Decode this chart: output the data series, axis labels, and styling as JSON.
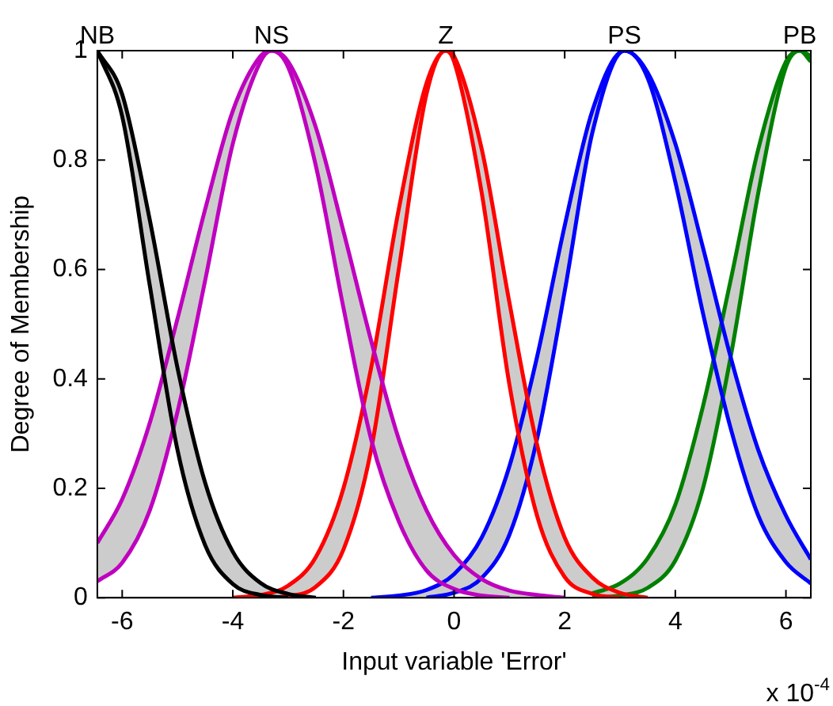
{
  "chart_data": {
    "type": "line",
    "xlabel": "Input variable 'Error'",
    "ylabel": "Degree of Membership",
    "annotations": [
      "x 10$^{-4}$"
    ],
    "xlim": [
      -6.45,
      6.45
    ],
    "xticks": [
      -6,
      -4,
      -2,
      0,
      2,
      4,
      6
    ],
    "ylim": [
      0,
      1
    ],
    "yticks": [
      0,
      0.2,
      0.4,
      0.6,
      0.8,
      1
    ],
    "grid": false,
    "legend": false,
    "marker": "none",
    "line_style": "solid",
    "series": [
      {
        "name": "NB",
        "color": "#000000",
        "x": [
          -6.45,
          -6.0,
          -5.5,
          -5.0,
          -4.5,
          -4.0,
          -3.5,
          -3.0,
          -2.5
        ],
        "values": [
          1,
          0.92,
          0.69,
          0.42,
          0.21,
          0.084,
          0.027,
          0.007,
          0
        ],
        "upper": [
          1,
          0.92,
          0.69,
          0.42,
          0.21,
          0.084,
          0.027,
          0.007,
          0
        ],
        "lower": [
          1,
          0.88,
          0.57,
          0.27,
          0.096,
          0.025,
          0.005,
          0,
          0
        ]
      },
      {
        "color": "#000000",
        "x": [
          -6.45,
          -6.0,
          -5.5,
          -5.0,
          -4.5,
          -4.0,
          -3.5,
          -3.0
        ],
        "values": [
          1,
          0.88,
          0.57,
          0.27,
          0.096,
          0.025,
          0.005,
          0
        ]
      },
      {
        "name": "NS",
        "color": "#bf00bf",
        "x": [
          -6.45,
          -6.0,
          -5.5,
          -5.0,
          -4.5,
          -4.0,
          -3.5,
          -3.3,
          -3.0,
          -2.5,
          -2.0,
          -1.5,
          -1.0,
          -0.5,
          0,
          0.5,
          1.0,
          1.5,
          2.0
        ],
        "values": [
          0.1,
          0.18,
          0.32,
          0.51,
          0.71,
          0.89,
          0.99,
          1,
          0.98,
          0.86,
          0.67,
          0.47,
          0.29,
          0.16,
          0.078,
          0.034,
          0.013,
          0.005,
          0
        ],
        "upper": [
          0.1,
          0.18,
          0.32,
          0.51,
          0.71,
          0.89,
          0.99,
          1,
          0.98,
          0.86,
          0.67,
          0.47,
          0.29,
          0.16,
          0.078,
          0.034,
          0.013,
          0.005,
          0
        ],
        "lower": [
          0.03,
          0.064,
          0.16,
          0.34,
          0.58,
          0.83,
          0.98,
          1,
          0.97,
          0.79,
          0.53,
          0.29,
          0.14,
          0.05,
          0.016,
          0.004,
          0,
          0,
          0
        ]
      },
      {
        "color": "#bf00bf",
        "x": [
          -6.45,
          -6.0,
          -5.5,
          -5.0,
          -4.5,
          -4.0,
          -3.5,
          -3.3,
          -3.0,
          -2.5,
          -2.0,
          -1.5,
          -1.0,
          -0.5,
          0,
          0.5,
          1.0
        ],
        "values": [
          0.03,
          0.064,
          0.16,
          0.34,
          0.58,
          0.83,
          0.98,
          1,
          0.97,
          0.79,
          0.53,
          0.29,
          0.14,
          0.05,
          0.016,
          0.004,
          0
        ]
      },
      {
        "name": "Z",
        "color": "#ff0000",
        "x": [
          -4.0,
          -3.5,
          -3.0,
          -2.5,
          -2.0,
          -1.5,
          -1.0,
          -0.5,
          -0.15,
          0,
          0.5,
          1.0,
          1.5,
          2.0,
          2.5,
          3.0,
          3.5
        ],
        "values": [
          0,
          0.005,
          0.022,
          0.074,
          0.2,
          0.42,
          0.71,
          0.94,
          1,
          0.99,
          0.82,
          0.54,
          0.28,
          0.11,
          0.037,
          0.009,
          0
        ],
        "upper": [
          0,
          0.005,
          0.022,
          0.074,
          0.2,
          0.42,
          0.71,
          0.94,
          1,
          0.99,
          0.82,
          0.54,
          0.28,
          0.11,
          0.037,
          0.009,
          0
        ],
        "lower": [
          0,
          0,
          0.003,
          0.02,
          0.088,
          0.27,
          0.6,
          0.92,
          1,
          0.98,
          0.74,
          0.39,
          0.15,
          0.038,
          0.007,
          0,
          0
        ]
      },
      {
        "color": "#ff0000",
        "x": [
          -3.5,
          -3.0,
          -2.5,
          -2.0,
          -1.5,
          -1.0,
          -0.5,
          -0.15,
          0,
          0.5,
          1.0,
          1.5,
          2.0,
          2.5,
          3.0
        ],
        "values": [
          0,
          0.003,
          0.02,
          0.088,
          0.27,
          0.6,
          0.92,
          1,
          0.98,
          0.74,
          0.39,
          0.15,
          0.038,
          0.007,
          0
        ]
      },
      {
        "name": "PS",
        "color": "#0000ff",
        "x": [
          -1.5,
          -1.0,
          -0.5,
          0,
          0.5,
          1.0,
          1.5,
          2.0,
          2.5,
          3.08,
          3.5,
          4.0,
          4.5,
          5.0,
          5.5,
          6.0,
          6.45
        ],
        "values": [
          0,
          0.004,
          0.014,
          0.043,
          0.11,
          0.24,
          0.44,
          0.68,
          0.89,
          1,
          0.96,
          0.83,
          0.64,
          0.44,
          0.27,
          0.15,
          0.07
        ],
        "upper": [
          0,
          0.004,
          0.014,
          0.043,
          0.11,
          0.24,
          0.44,
          0.68,
          0.89,
          1,
          0.96,
          0.83,
          0.64,
          0.44,
          0.27,
          0.15,
          0.07
        ],
        "lower": [
          0,
          0,
          0,
          0.009,
          0.036,
          0.115,
          0.29,
          0.56,
          0.85,
          1,
          0.95,
          0.76,
          0.52,
          0.31,
          0.15,
          0.065,
          0.026
        ]
      },
      {
        "color": "#0000ff",
        "x": [
          -0.5,
          0,
          0.5,
          1.0,
          1.5,
          2.0,
          2.5,
          3.08,
          3.5,
          4.0,
          4.5,
          5.0,
          5.5,
          6.0,
          6.45
        ],
        "values": [
          0,
          0.009,
          0.036,
          0.115,
          0.29,
          0.56,
          0.85,
          1,
          0.95,
          0.76,
          0.52,
          0.31,
          0.15,
          0.065,
          0.026
        ]
      },
      {
        "name": "PB",
        "color": "#008000",
        "x": [
          2.5,
          3.0,
          3.5,
          4.0,
          4.5,
          5.0,
          5.5,
          6.0,
          6.25,
          6.45
        ],
        "values": [
          0.008,
          0.026,
          0.072,
          0.17,
          0.35,
          0.58,
          0.82,
          0.98,
          1,
          0.99
        ],
        "upper": [
          0.008,
          0.026,
          0.072,
          0.17,
          0.35,
          0.58,
          0.82,
          0.98,
          1,
          0.99
        ],
        "lower": [
          0,
          0.004,
          0.018,
          0.068,
          0.2,
          0.44,
          0.74,
          0.97,
          1,
          0.98
        ]
      },
      {
        "color": "#008000",
        "x": [
          2.5,
          3.0,
          3.5,
          4.0,
          4.5,
          5.0,
          5.5,
          6.0,
          6.25,
          6.45
        ],
        "values": [
          0,
          0.004,
          0.018,
          0.068,
          0.2,
          0.44,
          0.74,
          0.97,
          1,
          0.98
        ]
      }
    ]
  }
}
